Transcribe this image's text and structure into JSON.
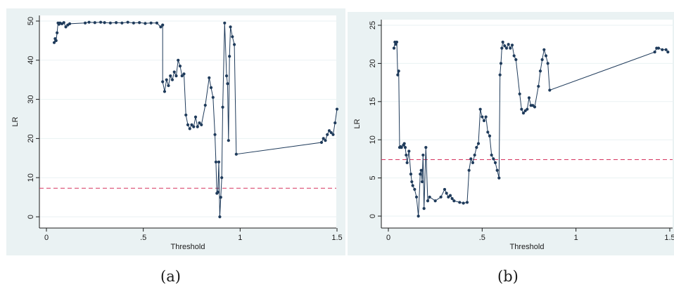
{
  "captions": {
    "a": "(a)",
    "b": "(b)"
  },
  "colors": {
    "line": "#1f3b5b",
    "reference": "#d6335e",
    "panel_bg": "#eaf2f3",
    "plot_bg": "#ffffff"
  },
  "chart_data": [
    {
      "id": "a",
      "type": "line",
      "xlabel": "Threshold",
      "ylabel": "LR",
      "xlim": [
        0,
        1.5
      ],
      "ylim": [
        0,
        50
      ],
      "xticks": [
        0,
        0.5,
        1,
        1.5
      ],
      "xtick_labels": [
        "0",
        ".5",
        "1",
        "1.5"
      ],
      "yticks": [
        0,
        10,
        20,
        30,
        40,
        50
      ],
      "ytick_labels": [
        "0",
        "10",
        "20",
        "30",
        "40",
        "50"
      ],
      "reference_line": 7.3,
      "grid": "horizontal",
      "x": [
        0.04,
        0.045,
        0.05,
        0.055,
        0.06,
        0.065,
        0.07,
        0.08,
        0.09,
        0.1,
        0.11,
        0.12,
        0.2,
        0.22,
        0.25,
        0.28,
        0.3,
        0.33,
        0.36,
        0.39,
        0.42,
        0.45,
        0.48,
        0.51,
        0.54,
        0.57,
        0.59,
        0.6,
        0.6,
        0.61,
        0.62,
        0.63,
        0.64,
        0.65,
        0.66,
        0.67,
        0.68,
        0.69,
        0.7,
        0.71,
        0.72,
        0.73,
        0.74,
        0.75,
        0.76,
        0.77,
        0.78,
        0.79,
        0.8,
        0.82,
        0.84,
        0.85,
        0.86,
        0.87,
        0.875,
        0.88,
        0.885,
        0.89,
        0.895,
        0.9,
        0.905,
        0.91,
        0.92,
        0.93,
        0.935,
        0.94,
        0.945,
        0.95,
        0.96,
        0.97,
        0.98,
        1.42,
        1.43,
        1.44,
        1.45,
        1.46,
        1.47,
        1.48,
        1.49,
        1.5
      ],
      "values": [
        44.5,
        45.5,
        45,
        47,
        49.5,
        49.2,
        49.5,
        49.3,
        49.6,
        48.5,
        49,
        49.3,
        49.5,
        49.7,
        49.6,
        49.7,
        49.6,
        49.5,
        49.6,
        49.5,
        49.7,
        49.5,
        49.6,
        49.4,
        49.5,
        49.5,
        48.5,
        49,
        34.5,
        32,
        35,
        33.5,
        36,
        35,
        37,
        36,
        40,
        38.5,
        36,
        36.5,
        26,
        23.5,
        22.5,
        23.5,
        23,
        25.5,
        23,
        24,
        23.5,
        28.5,
        35.5,
        33,
        30.5,
        21,
        14,
        6,
        6.3,
        14,
        0,
        5,
        10,
        28,
        49.5,
        36,
        34,
        19.5,
        41,
        48.5,
        46,
        44,
        16,
        19,
        20,
        19.5,
        21,
        22,
        21.5,
        21,
        24,
        27.5
      ]
    },
    {
      "id": "b",
      "type": "line",
      "xlabel": "Threshold",
      "ylabel": "LR",
      "xlim": [
        0,
        1.5
      ],
      "ylim": [
        0,
        25
      ],
      "xticks": [
        0,
        0.5,
        1,
        1.5
      ],
      "xtick_labels": [
        "0",
        ".5",
        "1",
        "1.5"
      ],
      "yticks": [
        0,
        5,
        10,
        15,
        20,
        25
      ],
      "ytick_labels": [
        "0",
        "5",
        "10",
        "15",
        "20",
        "25"
      ],
      "reference_line": 7.4,
      "grid": "horizontal",
      "x": [
        0.03,
        0.035,
        0.04,
        0.045,
        0.05,
        0.055,
        0.06,
        0.065,
        0.07,
        0.08,
        0.085,
        0.09,
        0.095,
        0.1,
        0.11,
        0.12,
        0.125,
        0.13,
        0.14,
        0.15,
        0.16,
        0.17,
        0.175,
        0.18,
        0.185,
        0.19,
        0.2,
        0.21,
        0.22,
        0.25,
        0.28,
        0.3,
        0.31,
        0.32,
        0.33,
        0.34,
        0.35,
        0.38,
        0.4,
        0.42,
        0.43,
        0.44,
        0.45,
        0.46,
        0.47,
        0.48,
        0.49,
        0.5,
        0.51,
        0.52,
        0.53,
        0.54,
        0.55,
        0.56,
        0.57,
        0.58,
        0.59,
        0.595,
        0.6,
        0.605,
        0.61,
        0.62,
        0.63,
        0.64,
        0.65,
        0.66,
        0.67,
        0.68,
        0.7,
        0.71,
        0.72,
        0.73,
        0.74,
        0.75,
        0.76,
        0.77,
        0.78,
        0.8,
        0.81,
        0.82,
        0.83,
        0.84,
        0.85,
        0.86,
        1.42,
        1.43,
        1.44,
        1.46,
        1.48,
        1.49
      ],
      "values": [
        22,
        22.8,
        22.5,
        22.8,
        18.5,
        19,
        9,
        9.1,
        9,
        9.3,
        9.5,
        9,
        8,
        7,
        8.5,
        5.5,
        4.5,
        4,
        3.5,
        2.5,
        0,
        5.5,
        6,
        4.5,
        8,
        1,
        9,
        2,
        2.5,
        2,
        2.5,
        3.5,
        3,
        2.5,
        2.7,
        2.3,
        2,
        1.8,
        1.7,
        1.8,
        6,
        7.5,
        7,
        8,
        9,
        9.5,
        14,
        13,
        12.5,
        13,
        11,
        10.5,
        8,
        7.5,
        7,
        6,
        5,
        18.5,
        20,
        22,
        22.8,
        22.3,
        22,
        22.5,
        22,
        22.4,
        21,
        20.5,
        16,
        14,
        13.5,
        13.8,
        14,
        15.5,
        14.5,
        14.5,
        14.3,
        17,
        19,
        20.5,
        21.8,
        21,
        20,
        16.5,
        21.5,
        22,
        22,
        21.8,
        21.8,
        21.5
      ]
    }
  ]
}
